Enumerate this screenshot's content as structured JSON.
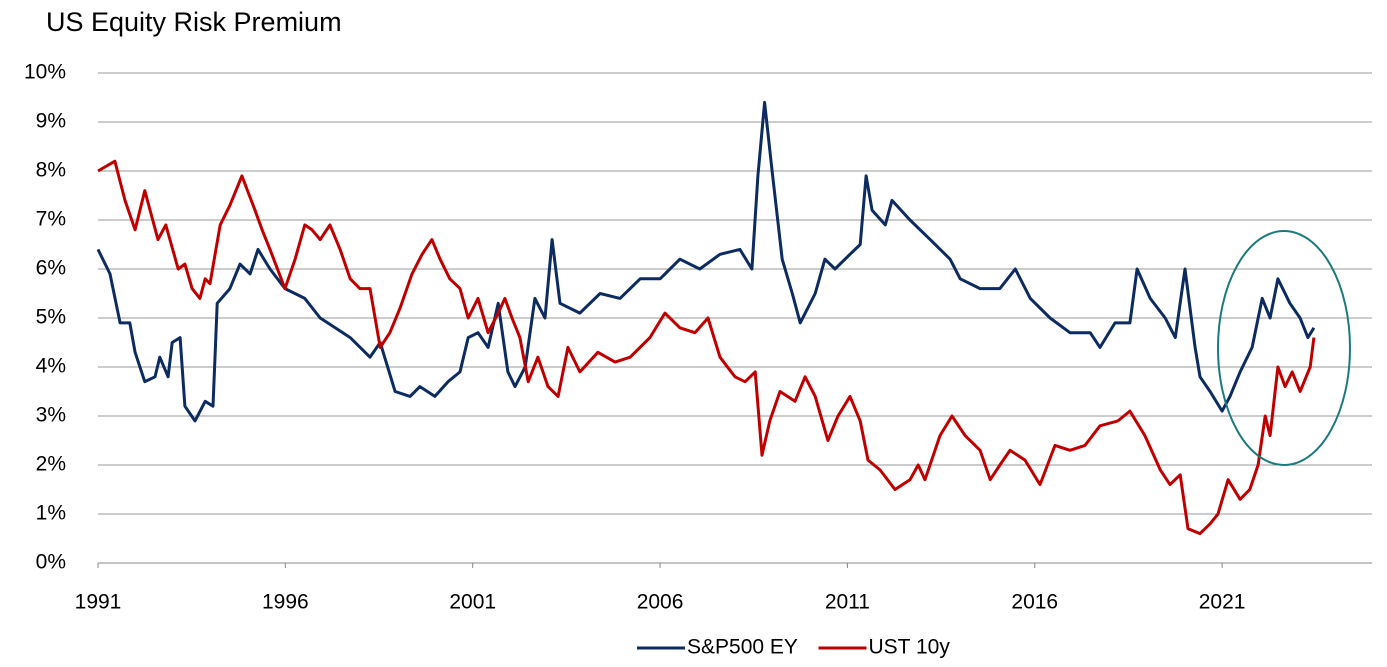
{
  "chart_data": {
    "type": "line",
    "title": "US Equity Risk Premium",
    "xlim": [
      1991,
      2025
    ],
    "xticks": [
      1991,
      1996,
      2001,
      2006,
      2011,
      2016,
      2021
    ],
    "ylim": [
      0,
      10
    ],
    "yticks": [
      {
        "value": 0,
        "label": "0%"
      },
      {
        "value": 1,
        "label": "1%"
      },
      {
        "value": 2,
        "label": "2%"
      },
      {
        "value": 3,
        "label": "3%"
      },
      {
        "value": 4,
        "label": "4%"
      },
      {
        "value": 5,
        "label": "5%"
      },
      {
        "value": 6,
        "label": "6%"
      },
      {
        "value": 7,
        "label": "7%"
      },
      {
        "value": 8,
        "label": "8%"
      },
      {
        "value": 9,
        "label": "9%"
      },
      {
        "value": 10,
        "label": "10%"
      }
    ],
    "grid": true,
    "legend": "bottom",
    "series": [
      {
        "name": "S&P500 EY",
        "color": "#0c2b60",
        "x": [
          1991.0,
          1991.32,
          1991.59,
          1991.85,
          1991.99,
          1992.25,
          1992.52,
          1992.65,
          1992.87,
          1992.98,
          1993.19,
          1993.32,
          1993.59,
          1993.86,
          1994.07,
          1994.18,
          1994.52,
          1994.79,
          1995.06,
          1995.27,
          1995.59,
          1995.99,
          1996.52,
          1996.93,
          1997.33,
          1997.73,
          1998.26,
          1998.53,
          1998.93,
          1999.33,
          1999.59,
          1999.99,
          2000.34,
          2000.66,
          2000.88,
          2001.14,
          2001.41,
          2001.68,
          2001.94,
          2002.13,
          2002.4,
          2002.66,
          2002.93,
          2003.12,
          2003.33,
          2003.86,
          2004.4,
          2004.93,
          2005.47,
          2006.0,
          2006.53,
          2007.06,
          2007.6,
          2008.13,
          2008.45,
          2008.61,
          2008.79,
          2008.99,
          2009.26,
          2009.53,
          2009.74,
          2010.14,
          2010.4,
          2010.67,
          2011.07,
          2011.34,
          2011.5,
          2011.66,
          2012.01,
          2012.19,
          2012.67,
          2013.21,
          2013.74,
          2014.01,
          2014.54,
          2015.07,
          2015.48,
          2015.88,
          2016.41,
          2016.94,
          2017.48,
          2017.74,
          2018.14,
          2018.54,
          2018.73,
          2019.08,
          2019.48,
          2019.75,
          2020.01,
          2020.28,
          2020.41,
          2020.68,
          2021.0,
          2021.21,
          2021.48,
          2021.8,
          2022.07,
          2022.28,
          2022.49,
          2022.81,
          2023.08,
          2023.29,
          2023.45
        ],
        "values": [
          6.4,
          5.9,
          4.9,
          4.9,
          4.3,
          3.7,
          3.8,
          4.2,
          3.8,
          4.5,
          4.6,
          3.2,
          2.9,
          3.3,
          3.2,
          5.3,
          5.6,
          6.1,
          5.9,
          6.4,
          6.0,
          5.6,
          5.4,
          5.0,
          4.8,
          4.6,
          4.2,
          4.5,
          3.5,
          3.4,
          3.6,
          3.4,
          3.7,
          3.9,
          4.6,
          4.7,
          4.4,
          5.3,
          3.9,
          3.6,
          4.0,
          5.4,
          5.0,
          6.6,
          5.3,
          5.1,
          5.5,
          5.4,
          5.8,
          5.8,
          6.2,
          6.0,
          6.3,
          6.4,
          6.0,
          7.9,
          9.4,
          8.0,
          6.2,
          5.5,
          4.9,
          5.5,
          6.2,
          6.0,
          6.3,
          6.5,
          7.9,
          7.2,
          6.9,
          7.4,
          7.0,
          6.6,
          6.2,
          5.8,
          5.6,
          5.6,
          6.0,
          5.4,
          5.0,
          4.7,
          4.7,
          4.4,
          4.9,
          4.9,
          6.0,
          5.4,
          5.0,
          4.6,
          6.0,
          4.4,
          3.8,
          3.5,
          3.1,
          3.4,
          3.9,
          4.4,
          5.4,
          5.0,
          5.8,
          5.3,
          5.0,
          4.6,
          4.8
        ]
      },
      {
        "name": "UST 10y",
        "color": "#c00000",
        "x": [
          1991.0,
          1991.45,
          1991.72,
          1991.99,
          1992.25,
          1992.6,
          1992.81,
          1993.14,
          1993.32,
          1993.51,
          1993.72,
          1993.86,
          1993.99,
          1994.26,
          1994.52,
          1994.84,
          1995.19,
          1995.38,
          1995.59,
          1995.99,
          1996.26,
          1996.52,
          1996.71,
          1996.93,
          1997.19,
          1997.46,
          1997.73,
          1997.99,
          1998.26,
          1998.53,
          1998.79,
          1999.06,
          1999.38,
          1999.65,
          1999.91,
          2000.13,
          2000.39,
          2000.66,
          2000.88,
          2001.14,
          2001.41,
          2001.68,
          2001.86,
          2002.05,
          2002.26,
          2002.48,
          2002.74,
          2003.01,
          2003.28,
          2003.54,
          2003.86,
          2004.34,
          2004.8,
          2005.2,
          2005.73,
          2006.13,
          2006.53,
          2006.93,
          2007.28,
          2007.6,
          2008.0,
          2008.27,
          2008.54,
          2008.72,
          2008.93,
          2009.2,
          2009.6,
          2009.87,
          2010.14,
          2010.48,
          2010.75,
          2011.07,
          2011.34,
          2011.55,
          2011.87,
          2012.27,
          2012.67,
          2012.89,
          2013.07,
          2013.47,
          2013.79,
          2014.14,
          2014.54,
          2014.81,
          2015.07,
          2015.34,
          2015.74,
          2016.14,
          2016.54,
          2016.94,
          2017.34,
          2017.74,
          2018.22,
          2018.54,
          2018.94,
          2019.35,
          2019.61,
          2019.88,
          2020.09,
          2020.41,
          2020.68,
          2020.89,
          2021.16,
          2021.48,
          2021.74,
          2021.96,
          2022.15,
          2022.28,
          2022.49,
          2022.68,
          2022.87,
          2023.08,
          2023.35,
          2023.45
        ],
        "values": [
          8.0,
          8.2,
          7.4,
          6.8,
          7.6,
          6.6,
          6.9,
          6.0,
          6.1,
          5.6,
          5.4,
          5.8,
          5.7,
          6.9,
          7.3,
          7.9,
          7.2,
          6.8,
          6.4,
          5.6,
          6.2,
          6.9,
          6.8,
          6.6,
          6.9,
          6.4,
          5.8,
          5.6,
          5.6,
          4.4,
          4.7,
          5.2,
          5.9,
          6.3,
          6.6,
          6.2,
          5.8,
          5.6,
          5.0,
          5.4,
          4.7,
          5.1,
          5.4,
          5.0,
          4.6,
          3.7,
          4.2,
          3.6,
          3.4,
          4.4,
          3.9,
          4.3,
          4.1,
          4.2,
          4.6,
          5.1,
          4.8,
          4.7,
          5.0,
          4.2,
          3.8,
          3.7,
          3.9,
          2.2,
          2.9,
          3.5,
          3.3,
          3.8,
          3.4,
          2.5,
          3.0,
          3.4,
          2.9,
          2.1,
          1.9,
          1.5,
          1.7,
          2.0,
          1.7,
          2.6,
          3.0,
          2.6,
          2.3,
          1.7,
          2.0,
          2.3,
          2.1,
          1.6,
          2.4,
          2.3,
          2.4,
          2.8,
          2.9,
          3.1,
          2.6,
          1.9,
          1.6,
          1.8,
          0.7,
          0.6,
          0.8,
          1.0,
          1.7,
          1.3,
          1.5,
          2.0,
          3.0,
          2.6,
          4.0,
          3.6,
          3.9,
          3.5,
          4.0,
          4.6
        ]
      }
    ]
  }
}
